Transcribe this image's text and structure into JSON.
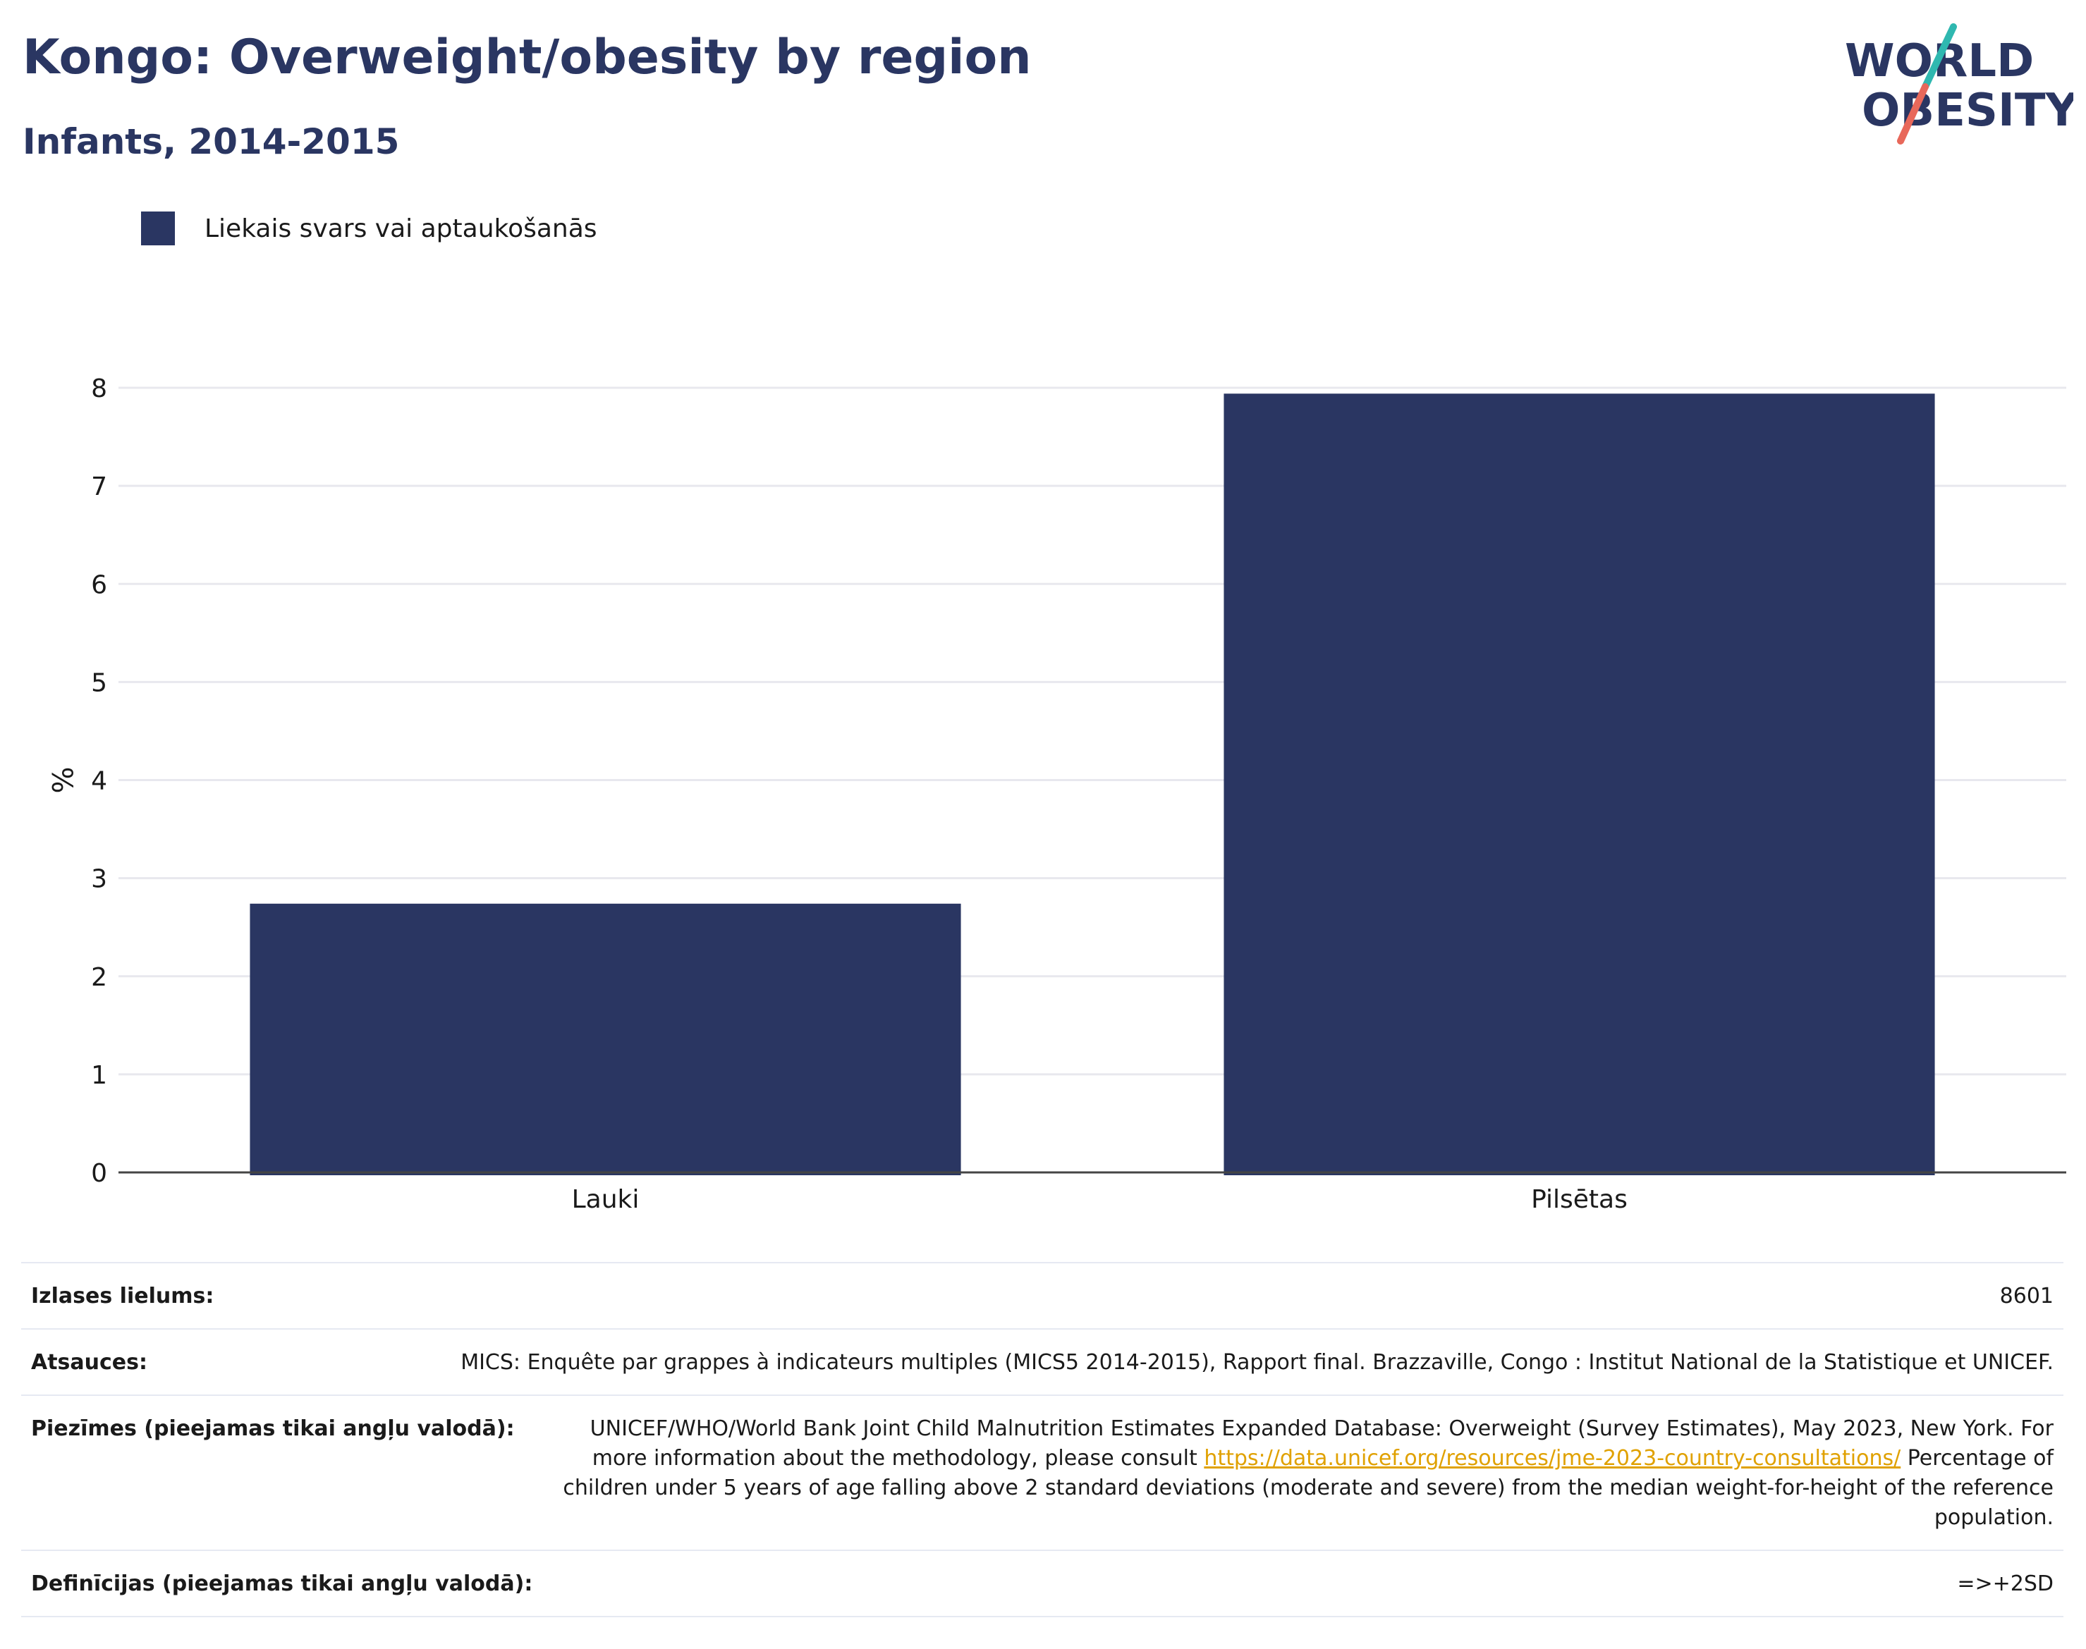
{
  "header": {
    "title": "Kongo: Overweight/obesity by region",
    "subtitle": "Infants, 2014-2015"
  },
  "logo": {
    "line1": "WORLD",
    "line2": "OBESITY",
    "colors": {
      "text": "#2a3662",
      "slash_top": "#2fb8b0",
      "slash_bottom": "#e8685a"
    }
  },
  "legend": {
    "items": [
      {
        "label": "Liekais svars vai aptaukošanās",
        "color": "#2a3662"
      }
    ]
  },
  "chart_data": {
    "type": "bar",
    "categories": [
      "Lauki",
      "Pilsētas"
    ],
    "series": [
      {
        "name": "Liekais svars vai aptaukošanās",
        "values": [
          2.74,
          7.94
        ],
        "color": "#2a3662"
      }
    ],
    "xlabel": "",
    "ylabel": "%",
    "ylim": [
      0,
      8
    ],
    "yticks": [
      0,
      1,
      2,
      3,
      4,
      5,
      6,
      7,
      8
    ],
    "grid": true,
    "legend_position": "top-left"
  },
  "meta": {
    "sample_size": {
      "label": "Izlases lielums:",
      "value": "8601"
    },
    "sources": {
      "label": "Atsauces:",
      "value": "MICS: Enquête par grappes à indicateurs multiples (MICS5 2014-2015), Rapport final. Brazzaville, Congo : Institut National de la Statistique et UNICEF."
    },
    "notes": {
      "label": "Piezīmes (pieejamas tikai angļu valodā):",
      "text_before": "UNICEF/WHO/World Bank Joint Child Malnutrition Estimates Expanded Database: Overweight (Survey Estimates), May 2023, New York. For more information about the methodology, please consult ",
      "link": "https://data.unicef.org/resources/jme-2023-country-consultations/",
      "text_after": " Percentage of children under 5 years of age falling above 2 standard deviations (moderate and severe) from the median weight-for-height of the reference population."
    },
    "definitions": {
      "label": "Definīcijas (pieejamas tikai angļu valodā):",
      "value": "=>+2SD"
    }
  }
}
